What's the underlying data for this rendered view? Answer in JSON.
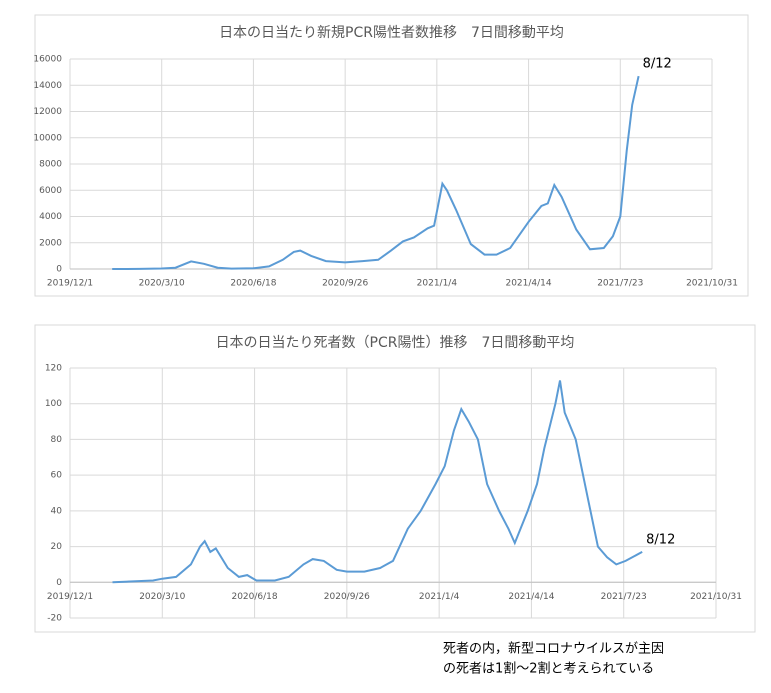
{
  "chart_data": [
    {
      "type": "line",
      "title": "日本の日当たり新規PCR陽性者数推移　7日間移動平均",
      "x": [
        "2020/1/16",
        "2020/2/15",
        "2020/3/10",
        "2020/3/25",
        "2020/4/11",
        "2020/4/25",
        "2020/5/10",
        "2020/5/25",
        "2020/6/18",
        "2020/7/5",
        "2020/7/20",
        "2020/8/1",
        "2020/8/8",
        "2020/8/20",
        "2020/9/5",
        "2020/9/26",
        "2020/10/15",
        "2020/11/1",
        "2020/11/15",
        "2020/11/28",
        "2020/12/10",
        "2020/12/25",
        "2021/1/1",
        "2021/1/10",
        "2021/1/15",
        "2021/1/25",
        "2021/2/10",
        "2021/2/25",
        "2021/3/10",
        "2021/3/25",
        "2021/4/14",
        "2021/4/28",
        "2021/5/5",
        "2021/5/12",
        "2021/5/20",
        "2021/6/5",
        "2021/6/20",
        "2021/7/5",
        "2021/7/15",
        "2021/7/23",
        "2021/7/30",
        "2021/8/5",
        "2021/8/12"
      ],
      "series": [
        {
          "name": "陽性者数",
          "color": "#5b9bd5",
          "values": [
            0,
            10,
            40,
            100,
            580,
            400,
            100,
            30,
            50,
            200,
            700,
            1300,
            1400,
            1000,
            600,
            500,
            600,
            700,
            1400,
            2100,
            2400,
            3100,
            3300,
            6500,
            6000,
            4500,
            1900,
            1100,
            1100,
            1600,
            3600,
            4800,
            5000,
            6400,
            5500,
            3000,
            1500,
            1600,
            2500,
            4000,
            9000,
            12500,
            14700
          ]
        }
      ],
      "xlim": [
        "2019/12/1",
        "2021/10/31"
      ],
      "xticks": [
        "2019/12/1",
        "2020/3/10",
        "2020/6/18",
        "2020/9/26",
        "2021/1/4",
        "2021/4/14",
        "2021/7/23",
        "2021/10/31"
      ],
      "ylim": [
        0,
        16000
      ],
      "yticks": [
        0,
        2000,
        4000,
        6000,
        8000,
        10000,
        12000,
        14000,
        16000
      ],
      "grid": true,
      "annotation": "8/12"
    },
    {
      "type": "line",
      "title": "日本の日当たり死者数（PCR陽性）推移　7日間移動平均",
      "x": [
        "2020/1/16",
        "2020/2/29",
        "2020/3/10",
        "2020/3/25",
        "2020/4/10",
        "2020/4/20",
        "2020/4/25",
        "2020/5/1",
        "2020/5/7",
        "2020/5/20",
        "2020/6/1",
        "2020/6/10",
        "2020/6/20",
        "2020/7/10",
        "2020/7/25",
        "2020/8/10",
        "2020/8/20",
        "2020/9/1",
        "2020/9/15",
        "2020/9/26",
        "2020/10/15",
        "2020/11/1",
        "2020/11/15",
        "2020/12/1",
        "2020/12/15",
        "2020/12/31",
        "2021/1/10",
        "2021/1/20",
        "2021/1/28",
        "2021/2/5",
        "2021/2/15",
        "2021/2/25",
        "2021/3/10",
        "2021/3/20",
        "2021/3/27",
        "2021/4/10",
        "2021/4/20",
        "2021/4/28",
        "2021/5/10",
        "2021/5/15",
        "2021/5/20",
        "2021/6/1",
        "2021/6/15",
        "2021/6/25",
        "2021/7/5",
        "2021/7/15",
        "2021/7/25",
        "2021/8/12"
      ],
      "series": [
        {
          "name": "死者数",
          "color": "#5b9bd5",
          "values": [
            0,
            1,
            2,
            3,
            10,
            20,
            23,
            17,
            19,
            8,
            3,
            4,
            1,
            1,
            3,
            10,
            13,
            12,
            7,
            6,
            6,
            8,
            12,
            30,
            40,
            55,
            65,
            85,
            97,
            90,
            80,
            55,
            40,
            30,
            22,
            40,
            55,
            75,
            100,
            113,
            95,
            80,
            45,
            20,
            14,
            10,
            12,
            17
          ]
        }
      ],
      "xlim": [
        "2019/12/1",
        "2021/10/31"
      ],
      "xticks": [
        "2019/12/1",
        "2020/3/10",
        "2020/6/18",
        "2020/9/26",
        "2021/1/4",
        "2021/4/14",
        "2021/7/23",
        "2021/10/31"
      ],
      "ylim": [
        -20,
        120
      ],
      "yticks": [
        -20,
        0,
        20,
        40,
        60,
        80,
        100,
        120
      ],
      "grid": true,
      "annotation": "8/12"
    }
  ],
  "caption": [
    "死者の内，新型コロナウイルスが主因",
    "の死者は1割～2割と考えられている"
  ]
}
